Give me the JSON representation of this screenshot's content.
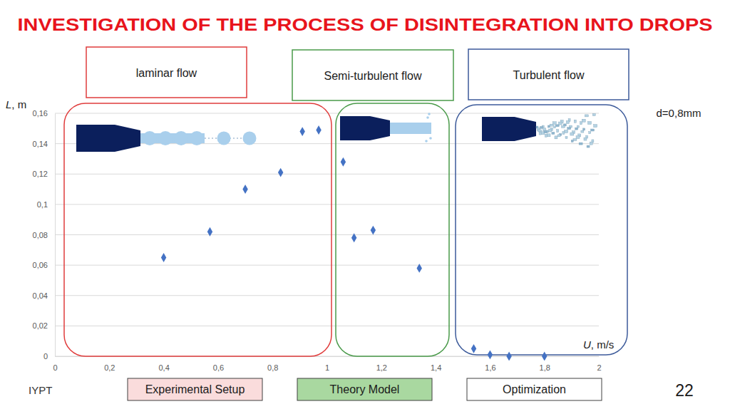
{
  "slide": {
    "footer": "IYPT",
    "page_number": "22",
    "buttons": [
      {
        "label": "Experimental Setup",
        "color": "#fadcdc"
      },
      {
        "label": "Theory Model",
        "color": "#a9d8a0"
      },
      {
        "label": "Optimization",
        "color": "#ffffff"
      }
    ]
  },
  "chart_data": {
    "type": "scatter",
    "title": "INVESTIGATION OF THE PROCESS OF DISINTEGRATION INTO DROPS",
    "x_label": "U, m/s",
    "y_label": "L, m",
    "annotations": [
      "d=0,8mm"
    ],
    "regions": [
      {
        "label": "laminar flow",
        "color": "#e03c3c"
      },
      {
        "label": "Semi-turbulent flow",
        "color": "#4a9a4a"
      },
      {
        "label": "Turbulent flow",
        "color": "#3c5a9a"
      }
    ],
    "x": [
      0.4,
      0.57,
      0.7,
      0.83,
      0.91,
      0.97,
      1.06,
      1.1,
      1.17,
      1.34,
      1.54,
      1.6,
      1.67,
      1.8
    ],
    "values": [
      0.065,
      0.082,
      0.11,
      0.121,
      0.148,
      0.149,
      0.128,
      0.078,
      0.083,
      0.058,
      0.005,
      0.001,
      0.0,
      0.0
    ],
    "color": "#4472c4",
    "marker": "diamond",
    "xlim": [
      0,
      2
    ],
    "ylim": [
      0,
      0.16
    ],
    "xticks": [
      0,
      {
        "value": 0.2,
        "label": "0,2"
      },
      {
        "value": 0.4,
        "label": "0,4"
      },
      {
        "value": 0.6,
        "label": "0,6"
      },
      {
        "value": 0.8,
        "label": "0,8"
      },
      1,
      {
        "value": 1.2,
        "label": "1,2"
      },
      {
        "value": 1.4,
        "label": "1,4"
      },
      {
        "value": 1.6,
        "label": "1,6"
      },
      {
        "value": 1.8,
        "label": "1,8"
      },
      2
    ],
    "yticks": [
      0,
      {
        "value": 0.02,
        "label": "0,02"
      },
      {
        "value": 0.04,
        "label": "0,04"
      },
      {
        "value": 0.06,
        "label": "0,06"
      },
      {
        "value": 0.08,
        "label": "0,08"
      },
      {
        "value": 0.1,
        "label": "0,1"
      },
      {
        "value": 0.12,
        "label": "0,12"
      },
      {
        "value": 0.14,
        "label": "0,14"
      },
      {
        "value": 0.16,
        "label": "0,16"
      }
    ],
    "grid": true
  }
}
